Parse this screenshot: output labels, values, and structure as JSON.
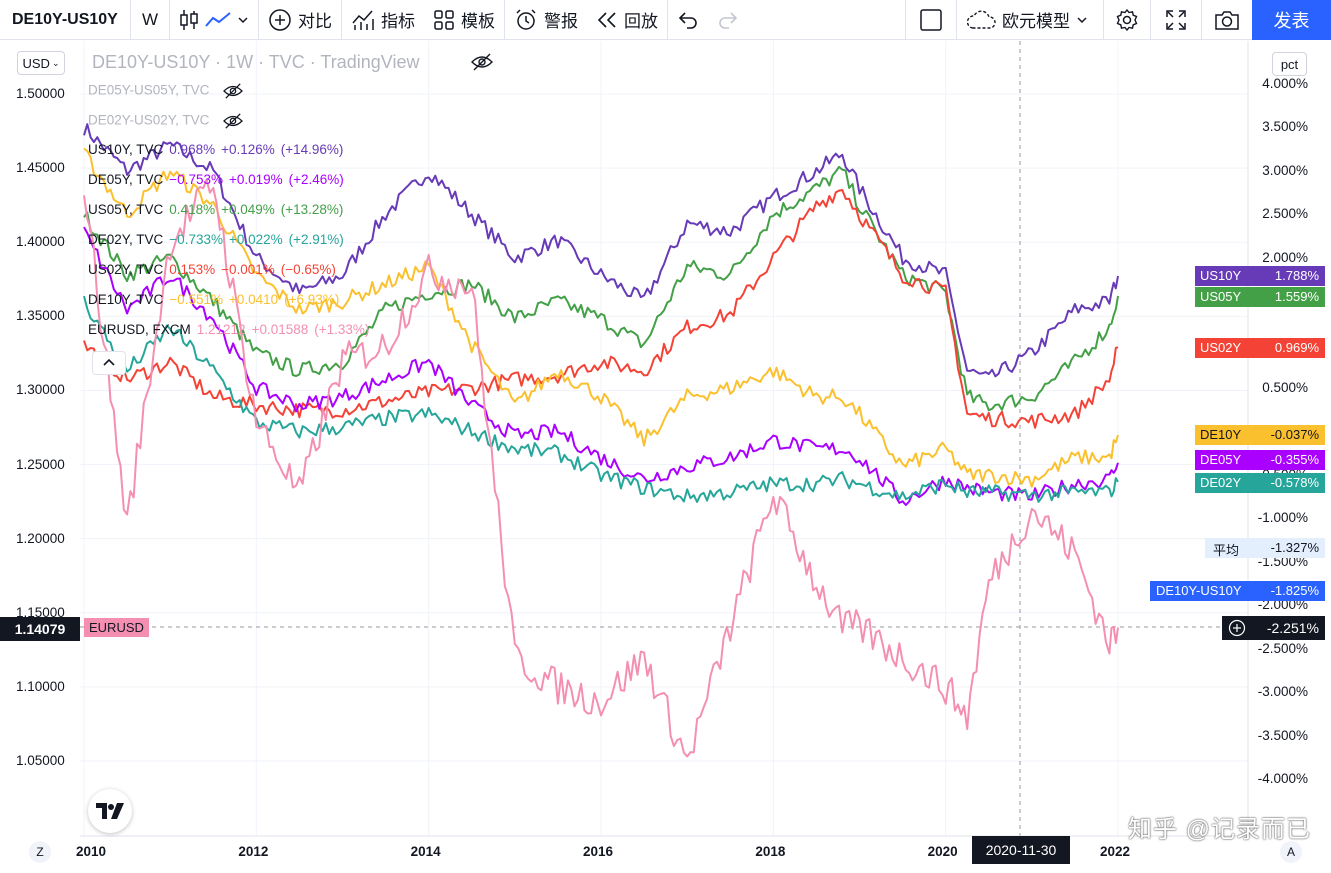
{
  "toolbar": {
    "symbol": "DE10Y-US10Y",
    "interval": "W",
    "compare_label": "对比",
    "indicators_label": "指标",
    "templates_label": "模板",
    "alert_label": "警报",
    "replay_label": "回放",
    "layout_name": "欧元模型",
    "publish_label": "发表"
  },
  "chart": {
    "title": "DE10Y-US10Y · 1W · TVC · TradingView",
    "currency": "USD",
    "pct_label": "pct",
    "current_price_left": "1.14079",
    "eurusd_tag": "EURUSD",
    "current_pct_right": "-2.251%",
    "cursor_date": "2020-11-30",
    "avg_label": "平均",
    "avg_value": "-1.327%",
    "spread_name": "DE10Y-US10Y",
    "spread_value": "-1.825%",
    "watermark": "知乎 @记录而已"
  },
  "legend": [
    {
      "name": "DE05Y-US05Y, TVC",
      "hidden": true
    },
    {
      "name": "DE02Y-US02Y, TVC",
      "hidden": true
    },
    {
      "name": "US10Y, TVC",
      "value": "0.968%",
      "change": "+0.126%",
      "pct": "(+14.96%)",
      "color": "#673ab7"
    },
    {
      "name": "DE05Y, TVC",
      "value": "−0.753%",
      "change": "+0.019%",
      "pct": "(+2.46%)",
      "color": "#aa00ff"
    },
    {
      "name": "US05Y, TVC",
      "value": "0.418%",
      "change": "+0.049%",
      "pct": "(+13.28%)",
      "color": "#43a047"
    },
    {
      "name": "DE02Y, TVC",
      "value": "−0.733%",
      "change": "+0.022%",
      "pct": "(+2.91%)",
      "color": "#26a69a"
    },
    {
      "name": "US02Y, TVC",
      "value": "0.153%",
      "change": "−0.001%",
      "pct": "(−0.65%)",
      "color": "#f44336"
    },
    {
      "name": "DE10Y, TVC",
      "value": "−0.551%",
      "change": "+0.0410",
      "pct": "(+6.93%)",
      "color": "#fbc02d"
    },
    {
      "name": "EURUSD, FXCM",
      "value": "1.21212",
      "change": "+0.01588",
      "pct": "(+1.33%)",
      "color": "#f48fb1"
    }
  ],
  "right_badges": [
    {
      "name": "US10Y",
      "value": "1.788%",
      "color": "#673ab7"
    },
    {
      "name": "US05Y",
      "value": "1.559%",
      "color": "#43a047"
    },
    {
      "name": "US02Y",
      "value": "0.969%",
      "color": "#f44336"
    },
    {
      "name": "DE10Y",
      "value": "-0.037%",
      "color": "#fbc02d",
      "dark_text": true
    },
    {
      "name": "DE05Y",
      "value": "-0.355%",
      "color": "#aa00ff"
    },
    {
      "name": "DE02Y",
      "value": "-0.578%",
      "color": "#26a69a"
    }
  ],
  "chart_data": {
    "type": "line",
    "x": [
      2010.0,
      2010.5,
      2011.0,
      2011.5,
      2012.0,
      2012.5,
      2013.0,
      2013.5,
      2014.0,
      2014.5,
      2015.0,
      2015.5,
      2016.0,
      2016.5,
      2017.0,
      2017.5,
      2018.0,
      2018.5,
      2018.8,
      2019.0,
      2019.5,
      2020.0,
      2020.25,
      2020.5,
      2021.0,
      2021.5,
      2021.9,
      2022.0
    ],
    "x_ticks": [
      "2010",
      "2012",
      "2014",
      "2016",
      "2018",
      "2020",
      "2022"
    ],
    "left_axis": {
      "label": "USD",
      "ticks": [
        "1.50000",
        "1.45000",
        "1.40000",
        "1.35000",
        "1.30000",
        "1.25000",
        "1.20000",
        "1.15000",
        "1.10000",
        "1.05000"
      ],
      "range": [
        1.03,
        1.51
      ]
    },
    "right_axis": {
      "label": "pct",
      "ticks": [
        "4.000%",
        "3.500%",
        "3.000%",
        "2.500%",
        "2.000%",
        "1.500%",
        "1.000%",
        "0.500%",
        "0.000%",
        "-0.500%",
        "-1.000%",
        "-1.500%",
        "-2.000%",
        "-2.500%",
        "-3.000%",
        "-3.500%",
        "-4.000%"
      ],
      "range": [
        -4.1,
        4.1
      ]
    },
    "series": [
      {
        "name": "US10Y",
        "axis": "right",
        "color": "#673ab7",
        "values": [
          3.5,
          3.0,
          3.3,
          3.0,
          2.0,
          1.6,
          1.8,
          2.5,
          3.0,
          2.5,
          2.0,
          2.2,
          1.8,
          1.5,
          2.4,
          2.3,
          2.7,
          3.0,
          3.2,
          2.8,
          2.0,
          1.8,
          0.7,
          0.6,
          0.9,
          1.4,
          1.5,
          1.79
        ]
      },
      {
        "name": "US05Y",
        "axis": "right",
        "color": "#43a047",
        "values": [
          2.5,
          1.8,
          2.0,
          1.5,
          0.9,
          0.7,
          0.8,
          1.4,
          1.6,
          1.7,
          1.3,
          1.5,
          1.3,
          1.0,
          1.9,
          1.8,
          2.5,
          2.8,
          3.0,
          2.6,
          1.8,
          1.6,
          0.4,
          0.3,
          0.4,
          0.8,
          1.2,
          1.56
        ]
      },
      {
        "name": "US02Y",
        "axis": "right",
        "color": "#f44336",
        "values": [
          1.0,
          0.6,
          0.8,
          0.4,
          0.3,
          0.25,
          0.25,
          0.35,
          0.45,
          0.5,
          0.6,
          0.65,
          0.8,
          0.7,
          1.2,
          1.35,
          2.0,
          2.6,
          2.8,
          2.5,
          1.8,
          1.6,
          0.2,
          0.15,
          0.12,
          0.2,
          0.6,
          0.97
        ]
      },
      {
        "name": "DE10Y",
        "axis": "right",
        "color": "#fbc02d",
        "values": [
          3.2,
          2.5,
          3.0,
          2.6,
          1.8,
          1.4,
          1.5,
          1.7,
          1.9,
          1.0,
          0.3,
          0.7,
          0.4,
          -0.1,
          0.4,
          0.5,
          0.7,
          0.4,
          0.4,
          0.2,
          -0.4,
          -0.2,
          -0.5,
          -0.5,
          -0.55,
          -0.3,
          -0.3,
          -0.04
        ]
      },
      {
        "name": "DE05Y",
        "axis": "right",
        "color": "#aa00ff",
        "values": [
          2.3,
          1.4,
          1.8,
          1.3,
          0.5,
          0.3,
          0.4,
          0.6,
          0.8,
          0.3,
          -0.05,
          0.0,
          -0.3,
          -0.55,
          -0.4,
          -0.3,
          -0.1,
          -0.2,
          -0.2,
          -0.3,
          -0.8,
          -0.55,
          -0.65,
          -0.7,
          -0.75,
          -0.6,
          -0.55,
          -0.36
        ]
      },
      {
        "name": "DE02Y",
        "axis": "right",
        "color": "#26a69a",
        "values": [
          1.5,
          0.7,
          1.2,
          0.7,
          0.1,
          0.0,
          0.05,
          0.15,
          0.2,
          0.0,
          -0.2,
          -0.25,
          -0.5,
          -0.65,
          -0.75,
          -0.7,
          -0.6,
          -0.6,
          -0.55,
          -0.6,
          -0.75,
          -0.6,
          -0.7,
          -0.7,
          -0.73,
          -0.7,
          -0.7,
          -0.58
        ]
      },
      {
        "name": "EURUSD",
        "axis": "left",
        "color": "#f48fb1",
        "values": [
          1.44,
          1.21,
          1.4,
          1.44,
          1.28,
          1.23,
          1.32,
          1.33,
          1.38,
          1.37,
          1.12,
          1.1,
          1.09,
          1.12,
          1.05,
          1.14,
          1.23,
          1.17,
          1.14,
          1.14,
          1.12,
          1.1,
          1.08,
          1.17,
          1.22,
          1.19,
          1.13,
          1.14
        ]
      }
    ]
  }
}
